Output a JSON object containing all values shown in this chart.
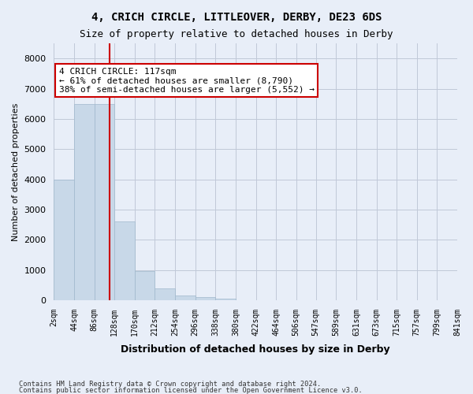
{
  "title_line1": "4, CRICH CIRCLE, LITTLEOVER, DERBY, DE23 6DS",
  "title_line2": "Size of property relative to detached houses in Derby",
  "xlabel": "Distribution of detached houses by size in Derby",
  "ylabel": "Number of detached properties",
  "footer_line1": "Contains HM Land Registry data © Crown copyright and database right 2024.",
  "footer_line2": "Contains public sector information licensed under the Open Government Licence v3.0.",
  "annotation_line1": "4 CRICH CIRCLE: 117sqm",
  "annotation_line2": "← 61% of detached houses are smaller (8,790)",
  "annotation_line3": "38% of semi-detached houses are larger (5,552) →",
  "property_sqm": 117,
  "bin_edges": [
    2,
    44,
    86,
    128,
    170,
    212,
    254,
    296,
    338,
    380,
    422,
    464,
    506,
    547,
    589,
    631,
    673,
    715,
    757,
    799,
    841
  ],
  "bin_labels": [
    "2sqm",
    "44sqm",
    "86sqm",
    "128sqm",
    "170sqm",
    "212sqm",
    "254sqm",
    "296sqm",
    "338sqm",
    "380sqm",
    "422sqm",
    "464sqm",
    "506sqm",
    "547sqm",
    "589sqm",
    "631sqm",
    "673sqm",
    "715sqm",
    "757sqm",
    "799sqm",
    "841sqm"
  ],
  "bar_heights": [
    4000,
    6500,
    6500,
    2600,
    950,
    400,
    150,
    100,
    50,
    0,
    0,
    0,
    0,
    0,
    0,
    0,
    0,
    0,
    0,
    0
  ],
  "bar_color": "#c8d8e8",
  "bar_edge_color": "#a0b8cc",
  "ylim": [
    0,
    8500
  ],
  "yticks": [
    0,
    1000,
    2000,
    3000,
    4000,
    5000,
    6000,
    7000,
    8000
  ],
  "grid_color": "#c0c8d8",
  "background_color": "#e8eef8",
  "vline_color": "#cc0000",
  "annotation_box_color": "#ffffff",
  "annotation_box_edge_color": "#cc0000"
}
